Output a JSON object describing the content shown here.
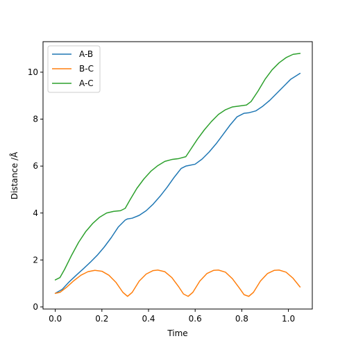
{
  "chart_data": {
    "type": "line",
    "xlabel": "Time",
    "ylabel": "Distance /Å",
    "xlim": [
      -0.0525,
      1.1025
    ],
    "ylim": [
      -0.09,
      11.3
    ],
    "xticks": [
      0.0,
      0.2,
      0.4,
      0.6,
      0.8,
      1.0
    ],
    "xtick_labels": [
      "0.0",
      "0.2",
      "0.4",
      "0.6",
      "0.8",
      "1.0"
    ],
    "yticks": [
      0,
      2,
      4,
      6,
      8,
      10
    ],
    "ytick_labels": [
      "0",
      "2",
      "4",
      "6",
      "8",
      "10"
    ],
    "grid": false,
    "legend_position": "top-left",
    "series": [
      {
        "name": "A-B",
        "color": "#1f77b4",
        "x": [
          0.0,
          0.03,
          0.06,
          0.09,
          0.12,
          0.15,
          0.18,
          0.21,
          0.24,
          0.27,
          0.3,
          0.31,
          0.33,
          0.36,
          0.39,
          0.42,
          0.45,
          0.48,
          0.51,
          0.54,
          0.56,
          0.57,
          0.6,
          0.63,
          0.66,
          0.69,
          0.72,
          0.75,
          0.78,
          0.81,
          0.83,
          0.86,
          0.89,
          0.92,
          0.95,
          0.98,
          1.01,
          1.05
        ],
        "y": [
          0.58,
          0.75,
          1.07,
          1.35,
          1.62,
          1.9,
          2.2,
          2.55,
          2.95,
          3.4,
          3.7,
          3.75,
          3.78,
          3.9,
          4.1,
          4.38,
          4.72,
          5.1,
          5.52,
          5.9,
          6.0,
          6.02,
          6.08,
          6.3,
          6.6,
          6.95,
          7.35,
          7.75,
          8.1,
          8.25,
          8.27,
          8.35,
          8.55,
          8.8,
          9.1,
          9.4,
          9.7,
          9.95
        ]
      },
      {
        "name": "B-C",
        "color": "#ff7f0e",
        "x": [
          0.0,
          0.02,
          0.05,
          0.08,
          0.11,
          0.14,
          0.17,
          0.2,
          0.23,
          0.26,
          0.29,
          0.31,
          0.33,
          0.36,
          0.39,
          0.42,
          0.44,
          0.47,
          0.5,
          0.53,
          0.55,
          0.57,
          0.59,
          0.62,
          0.65,
          0.68,
          0.7,
          0.73,
          0.76,
          0.79,
          0.81,
          0.83,
          0.85,
          0.88,
          0.91,
          0.94,
          0.96,
          0.99,
          1.02,
          1.05
        ],
        "y": [
          0.58,
          0.62,
          0.85,
          1.12,
          1.35,
          1.5,
          1.56,
          1.52,
          1.35,
          1.05,
          0.62,
          0.45,
          0.62,
          1.1,
          1.4,
          1.55,
          1.57,
          1.5,
          1.25,
          0.85,
          0.55,
          0.45,
          0.62,
          1.1,
          1.42,
          1.56,
          1.57,
          1.48,
          1.2,
          0.8,
          0.52,
          0.45,
          0.62,
          1.1,
          1.42,
          1.56,
          1.57,
          1.48,
          1.22,
          0.85
        ]
      },
      {
        "name": "A-C",
        "color": "#2ca02c",
        "x": [
          0.0,
          0.02,
          0.04,
          0.07,
          0.1,
          0.13,
          0.16,
          0.19,
          0.22,
          0.25,
          0.28,
          0.3,
          0.32,
          0.35,
          0.38,
          0.41,
          0.44,
          0.47,
          0.5,
          0.53,
          0.56,
          0.58,
          0.61,
          0.64,
          0.67,
          0.7,
          0.73,
          0.76,
          0.79,
          0.82,
          0.84,
          0.87,
          0.9,
          0.93,
          0.96,
          0.99,
          1.02,
          1.05
        ],
        "y": [
          1.15,
          1.25,
          1.6,
          2.2,
          2.75,
          3.2,
          3.55,
          3.82,
          4.0,
          4.07,
          4.1,
          4.2,
          4.55,
          5.05,
          5.45,
          5.78,
          6.02,
          6.2,
          6.28,
          6.32,
          6.4,
          6.7,
          7.15,
          7.55,
          7.9,
          8.2,
          8.4,
          8.52,
          8.56,
          8.6,
          8.75,
          9.2,
          9.7,
          10.1,
          10.4,
          10.62,
          10.76,
          10.8
        ]
      }
    ]
  }
}
